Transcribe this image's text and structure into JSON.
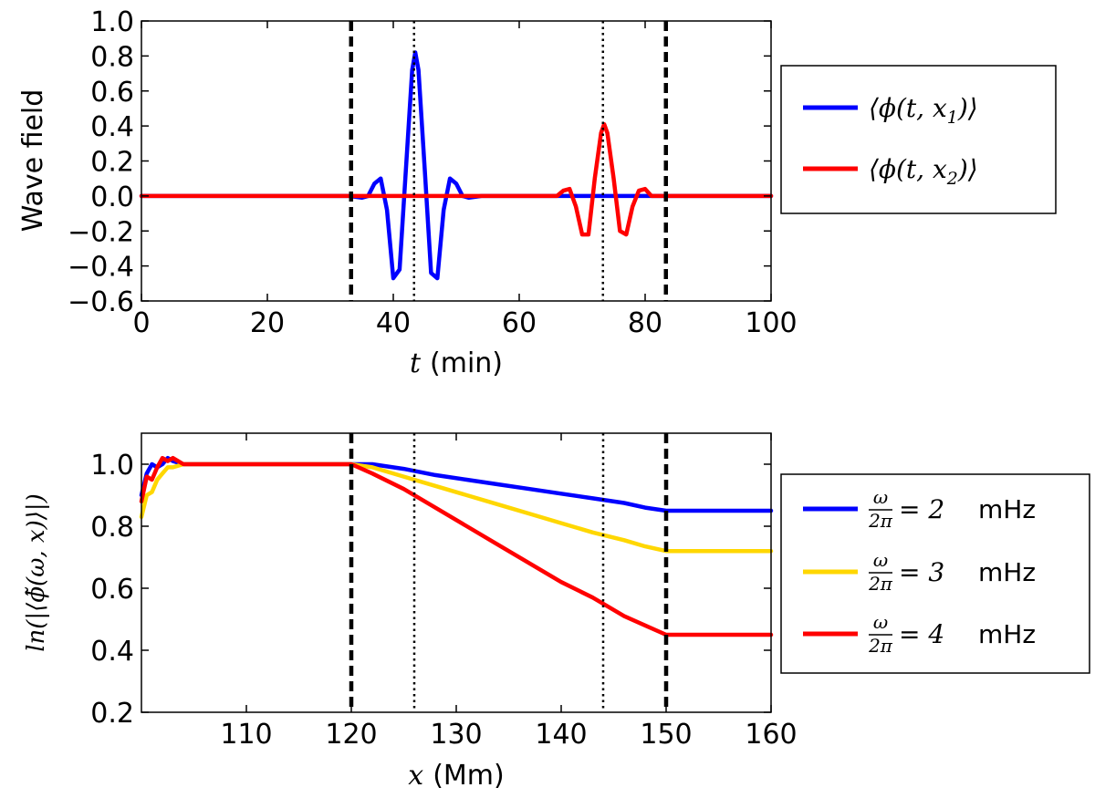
{
  "chart_data": [
    {
      "type": "line",
      "xlabel_var": "t",
      "xlabel_unit": "(min)",
      "ylabel": "Wave field",
      "xlim": [
        0,
        100
      ],
      "ylim": [
        -0.6,
        1.0
      ],
      "xticks": [
        0,
        20,
        40,
        60,
        80,
        100
      ],
      "xtick_labels": [
        "0",
        "20",
        "40",
        "60",
        "80",
        "100"
      ],
      "yticks": [
        -0.6,
        -0.4,
        -0.2,
        0.0,
        0.2,
        0.4,
        0.6,
        0.8,
        1.0
      ],
      "ytick_labels": [
        "−0.6",
        "−0.4",
        "−0.2",
        "0.0",
        "0.2",
        "0.4",
        "0.6",
        "0.8",
        "1.0"
      ],
      "vlines": [
        {
          "x": 33.3,
          "style": "dashed"
        },
        {
          "x": 83.3,
          "style": "dashed"
        },
        {
          "x": 43.3,
          "style": "dotted"
        },
        {
          "x": 73.3,
          "style": "dotted"
        }
      ],
      "series": [
        {
          "name": "⟨ϕ(t, x₁)⟩",
          "color": "#0000ff",
          "x": [
            0,
            33,
            35,
            36,
            37,
            38,
            39,
            40,
            41,
            42,
            43,
            43.5,
            44,
            45,
            46,
            47,
            48,
            49,
            50,
            51,
            52,
            54,
            100
          ],
          "y": [
            0,
            0,
            -0.01,
            0.0,
            0.07,
            0.1,
            -0.08,
            -0.47,
            -0.42,
            0.15,
            0.72,
            0.82,
            0.72,
            0.15,
            -0.44,
            -0.47,
            -0.08,
            0.1,
            0.07,
            0.0,
            -0.01,
            0,
            0
          ]
        },
        {
          "name": "⟨ϕ(t, x₂)⟩",
          "color": "#ff0000",
          "x": [
            0,
            64,
            66,
            67,
            68,
            69,
            70,
            71,
            72,
            73,
            73.5,
            74,
            75,
            76,
            77,
            78,
            79,
            80,
            81,
            83,
            100
          ],
          "y": [
            0,
            0,
            0.0,
            0.03,
            0.04,
            -0.06,
            -0.22,
            -0.22,
            0.1,
            0.36,
            0.41,
            0.36,
            0.1,
            -0.2,
            -0.22,
            -0.06,
            0.03,
            0.04,
            0.0,
            0,
            0
          ]
        }
      ],
      "legend_position": "right"
    },
    {
      "type": "line",
      "xlabel_var": "x",
      "xlabel_unit": "(Mm)",
      "ylabel": "ln(|⟨ϕ̃(ω, x)⟩|)",
      "xlim": [
        100,
        160
      ],
      "ylim": [
        0.2,
        1.1
      ],
      "xticks": [
        110,
        120,
        130,
        140,
        150,
        160
      ],
      "xtick_labels": [
        "110",
        "120",
        "130",
        "140",
        "150",
        "160"
      ],
      "yticks": [
        0.2,
        0.4,
        0.6,
        0.8,
        1.0
      ],
      "ytick_labels": [
        "0.2",
        "0.4",
        "0.6",
        "0.8",
        "1.0"
      ],
      "vlines": [
        {
          "x": 120,
          "style": "dashed"
        },
        {
          "x": 150,
          "style": "dashed"
        },
        {
          "x": 126,
          "style": "dotted"
        },
        {
          "x": 144,
          "style": "dotted"
        }
      ],
      "series": [
        {
          "name": "ω/2π = 2 mHz",
          "color": "#0000ff",
          "x": [
            100,
            100.5,
            101,
            101.5,
            102,
            102.5,
            103,
            104,
            106,
            110,
            115,
            120,
            122,
            125,
            128,
            131,
            134,
            137,
            140,
            143,
            146,
            148,
            150,
            160
          ],
          "y": [
            0.9,
            0.97,
            1.0,
            0.99,
            1.0,
            1.02,
            1.01,
            1.0,
            1.0,
            1.0,
            1.0,
            1.0,
            1.0,
            0.985,
            0.965,
            0.95,
            0.935,
            0.92,
            0.905,
            0.89,
            0.875,
            0.86,
            0.85,
            0.85
          ]
        },
        {
          "name": "ω/2π = 3 mHz",
          "color": "#ffd700",
          "x": [
            100,
            100.5,
            101,
            101.5,
            102,
            102.5,
            103,
            104,
            106,
            110,
            115,
            120,
            122,
            125,
            128,
            131,
            134,
            137,
            140,
            143,
            146,
            148,
            150,
            160
          ],
          "y": [
            0.83,
            0.9,
            0.91,
            0.95,
            0.97,
            0.99,
            0.99,
            1.0,
            1.0,
            1.0,
            1.0,
            1.0,
            0.99,
            0.96,
            0.93,
            0.9,
            0.87,
            0.84,
            0.81,
            0.78,
            0.755,
            0.735,
            0.72,
            0.72
          ]
        },
        {
          "name": "ω/2π = 4 mHz",
          "color": "#ff0000",
          "x": [
            100,
            100.5,
            101,
            101.5,
            102,
            102.5,
            103,
            104,
            106,
            110,
            115,
            120,
            122,
            125,
            128,
            131,
            134,
            137,
            140,
            143,
            146,
            148,
            150,
            160
          ],
          "y": [
            0.88,
            0.96,
            0.95,
            0.99,
            1.02,
            1.01,
            1.02,
            1.0,
            1.0,
            1.0,
            1.0,
            1.0,
            0.97,
            0.92,
            0.86,
            0.8,
            0.74,
            0.68,
            0.62,
            0.57,
            0.51,
            0.48,
            0.45,
            0.45
          ]
        }
      ],
      "legend_position": "right"
    }
  ],
  "legends": {
    "top": [
      {
        "pre": "⟨ϕ(t, x",
        "sub": "1",
        "post": ")⟩"
      },
      {
        "pre": "⟨ϕ(t, x",
        "sub": "2",
        "post": ")⟩"
      }
    ],
    "bottom": [
      {
        "num": "ω",
        "den": "2π",
        "eq": "= 2",
        "unit": "mHz"
      },
      {
        "num": "ω",
        "den": "2π",
        "eq": "= 3",
        "unit": "mHz"
      },
      {
        "num": "ω",
        "den": "2π",
        "eq": "= 4",
        "unit": "mHz"
      }
    ]
  }
}
